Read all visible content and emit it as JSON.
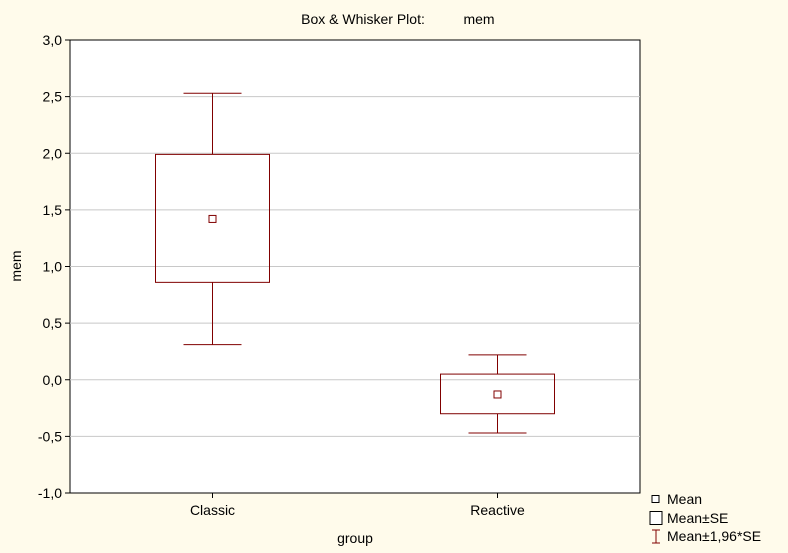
{
  "colors": {
    "background": "#fffbeb",
    "plot_area": "#ffffff",
    "gridline": "#c8c8c8",
    "mark": "#800000",
    "axis": "#000000"
  },
  "chart_data": {
    "type": "box",
    "title_prefix": "Box & Whisker Plot:",
    "title_variable": "mem",
    "xlabel": "group",
    "ylabel": "mem",
    "ylim": [
      -1.0,
      3.0
    ],
    "yticks": [
      "-1,0",
      "-0,5",
      "0,0",
      "0,5",
      "1,0",
      "1,5",
      "2,0",
      "2,5",
      "3,0"
    ],
    "ytick_values": [
      -1.0,
      -0.5,
      0.0,
      0.5,
      1.0,
      1.5,
      2.0,
      2.5,
      3.0
    ],
    "grid": true,
    "legend_position": "bottom-right",
    "categories": [
      "Classic",
      "Reactive"
    ],
    "series": [
      {
        "category": "Classic",
        "mean": 1.42,
        "se_low": 0.86,
        "se_high": 1.99,
        "ci_low": 0.31,
        "ci_high": 2.53
      },
      {
        "category": "Reactive",
        "mean": -0.13,
        "se_low": -0.3,
        "se_high": 0.05,
        "ci_low": -0.47,
        "ci_high": 0.22
      }
    ],
    "legend": [
      {
        "marker": "mean-square",
        "label": "Mean"
      },
      {
        "marker": "se-box",
        "label": "Mean±SE"
      },
      {
        "marker": "ci-whisker",
        "label": "Mean±1,96*SE"
      }
    ]
  }
}
